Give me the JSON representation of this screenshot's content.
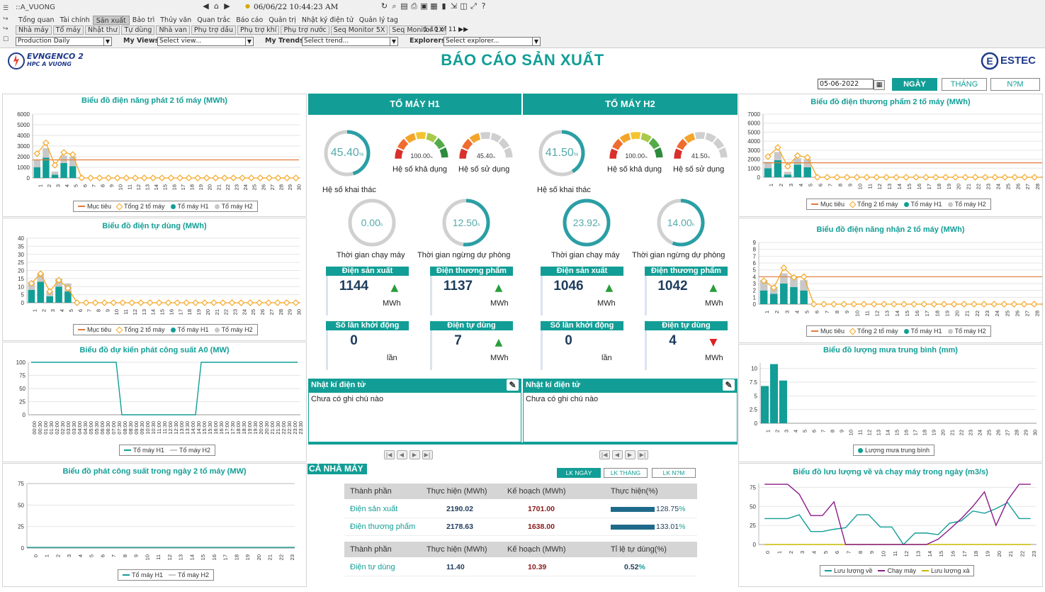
{
  "toolbar": {
    "title": "::A_VUONG",
    "datetime": "06/06/22 10:44:23 AM",
    "tabs_row1": [
      "Tổng quan",
      "Tài chính",
      "Sản xuất",
      "Bảo trì",
      "Thủy văn",
      "Quan trắc",
      "Báo cáo",
      "Quản trị",
      "Nhật ký điện tử",
      "Quản lý tag"
    ],
    "tabs_row1_active": 2,
    "tabs_row2": [
      "Nhà máy",
      "Tổ máy",
      "Nhật thư",
      "Tự dùng",
      "Nhà van",
      "Phụ trợ dầu",
      "Phụ trợ khí",
      "Phụ trợ nước",
      "Seq Monitor 5X",
      "Seq Monitor 1X"
    ],
    "paging": "1-10 of 11",
    "production_select": "Production Daily",
    "my_views_label": "My Views",
    "my_views_value": "Select view...",
    "my_trends_label": "My Trends",
    "my_trends_value": "Select trend...",
    "explorers_label": "Explorers",
    "explorers_value": "Select explorer..."
  },
  "header": {
    "title": "BÁO CÁO SẢN XUẤT",
    "logo_left_line1": "EVNGENCO 2",
    "logo_left_line2": "HPC A VUONG",
    "logo_right": "ESTEC",
    "date_value": "05-06-2022",
    "btn_day": "NGÀY",
    "btn_month": "THÁNG",
    "btn_year": "N?M"
  },
  "colors": {
    "accent": "#129e96",
    "target": "#e07b39",
    "total": "#f5a623",
    "h1": "#129e96",
    "h2": "#c8c8c8",
    "purple": "#8b1a8b",
    "olive": "#c7b800"
  },
  "charts": {
    "c1": {
      "title": "Biểu đồ điện năng phát 2 tổ máy (MWh)",
      "ymax": 6000,
      "yticks": [
        0,
        1000,
        2000,
        3000,
        4000,
        5000,
        6000
      ],
      "target": 1700,
      "h1": [
        1000,
        1900,
        300,
        1400,
        1100
      ],
      "h2": [
        700,
        900,
        300,
        700,
        900
      ],
      "total": [
        2300,
        3300,
        1200,
        2400,
        2200
      ]
    },
    "c2": {
      "title": "Biểu đồ điện tự dùng (MWh)",
      "ymax": 40,
      "yticks": [
        0,
        5,
        10,
        15,
        20,
        25,
        30,
        35,
        40
      ],
      "target": null,
      "h1": [
        8,
        13,
        4,
        10,
        7
      ],
      "h2": [
        5,
        5,
        3,
        5,
        5
      ],
      "total": [
        12,
        18,
        7,
        14,
        9
      ]
    },
    "c3": {
      "title": "Biểu đồ dự kiến phát công suất A0 (MW)",
      "ymax": 100,
      "yticks": [
        0,
        25,
        50,
        75,
        100
      ],
      "xlabels": [
        "00:00",
        "00:30",
        "01:00",
        "01:30",
        "02:00",
        "02:30",
        "03:00",
        "03:30",
        "04:00",
        "04:30",
        "05:00",
        "05:30",
        "06:00",
        "06:30",
        "07:00",
        "07:30",
        "08:00",
        "08:30",
        "09:00",
        "09:30",
        "10:00",
        "10:30",
        "11:00",
        "11:30",
        "12:00",
        "12:30",
        "13:00",
        "13:30",
        "14:00",
        "14:30",
        "15:00",
        "15:30",
        "16:00",
        "16:30",
        "17:00",
        "17:30",
        "18:00",
        "18:30",
        "19:00",
        "19:30",
        "20:00",
        "20:30",
        "21:00",
        "21:30",
        "22:00",
        "22:30",
        "23:00",
        "23:30"
      ],
      "values": [
        100,
        100,
        100,
        100,
        100,
        100,
        100,
        100,
        100,
        100,
        100,
        100,
        100,
        100,
        100,
        100,
        0,
        0,
        0,
        0,
        0,
        0,
        0,
        0,
        0,
        0,
        0,
        0,
        0,
        0,
        100,
        100,
        100,
        100,
        100,
        100,
        100,
        100,
        100,
        100,
        100,
        100,
        100,
        100,
        100,
        100,
        100,
        100
      ]
    },
    "c4": {
      "title": "Biểu đồ phát công suất trong ngày 2 tổ máy (MW)",
      "ymax": 75,
      "yticks": [
        0,
        25,
        50,
        75
      ]
    },
    "c5": {
      "title": "Biểu đồ điện thương phẩm 2 tổ máy (MWh)",
      "ymax": 7000,
      "yticks": [
        0,
        1000,
        2000,
        3000,
        4000,
        5000,
        6000,
        7000
      ],
      "target": 1600,
      "h1": [
        1000,
        1900,
        300,
        1400,
        1100
      ],
      "h2": [
        700,
        900,
        300,
        700,
        900
      ],
      "total": [
        2300,
        3300,
        1200,
        2400,
        2200
      ]
    },
    "c6": {
      "title": "Biểu đồ điện năng nhận 2 tổ máy (MWh)",
      "ymax": 9,
      "yticks": [
        0,
        1,
        2,
        3,
        4,
        5,
        6,
        7,
        8,
        9
      ],
      "target": 4,
      "h1": [
        2,
        1.5,
        3,
        2.5,
        2
      ],
      "h2": [
        1.5,
        1,
        1.5,
        1.5,
        1.5
      ],
      "total": [
        3.4,
        2.4,
        5.3,
        3.9,
        4
      ]
    },
    "c7": {
      "title": "Biểu đồ lượng mưa trung bình (mm)",
      "ymax": 11,
      "yticks": [
        0,
        2.5,
        5,
        7.5,
        10
      ],
      "values": [
        6.8,
        10.8,
        7.8,
        0,
        0,
        0,
        0,
        0,
        0,
        0,
        0,
        0,
        0,
        0,
        0,
        0,
        0,
        0,
        0,
        0,
        0,
        0,
        0,
        0,
        0,
        0,
        0,
        0,
        0,
        0
      ]
    },
    "c8": {
      "title": "Biểu đồ lưu lượng về và chạy máy trong ngày (m3/s)",
      "ymax": 80,
      "yticks": [
        0,
        25,
        50,
        75
      ],
      "luu_luong_ve": [
        34,
        34,
        34,
        39,
        17,
        17,
        20,
        22,
        39,
        39,
        23,
        23,
        0,
        15,
        15,
        13,
        28,
        31,
        44,
        41,
        47,
        55,
        34,
        34
      ],
      "chay_may": [
        79,
        79,
        79,
        66,
        38,
        38,
        56,
        0,
        0,
        0,
        0,
        0,
        0,
        0,
        0,
        7,
        20,
        34,
        50,
        69,
        25,
        58,
        79,
        79
      ],
      "luu_luong_xa": [
        0,
        0,
        0,
        0,
        0,
        0,
        0,
        0,
        0,
        0,
        0,
        0,
        0,
        0,
        0,
        0,
        0,
        0,
        0,
        0,
        0,
        0,
        0,
        0
      ]
    }
  },
  "legend_labels": {
    "target": "Mục tiêu",
    "total": "Tổng 2 tổ máy",
    "h1": "Tổ máy H1",
    "h2": "Tổ máy H2",
    "rain": "Lượng mưa trung bình",
    "luu_ve": "Lưu lượng về",
    "chay": "Chạy máy",
    "xa": "Lưu lượng xả"
  },
  "units": [
    {
      "name": "TỔ MÁY H1",
      "khai_thac": "45.40",
      "kha_dung": "100.00",
      "su_dung": "45.40",
      "chay": "0.00",
      "ngung": "12.50",
      "san_xuat": "1144",
      "san_xuat_trend": "up",
      "thuong_pham": "1137",
      "thuong_pham_trend": "up",
      "khoi_dong": "0",
      "tu_dung": "7",
      "tu_dung_trend": "up"
    },
    {
      "name": "TỔ MÁY H2",
      "khai_thac": "41.50",
      "kha_dung": "100.00",
      "su_dung": "41.50",
      "chay": "23.92",
      "ngung": "14.00",
      "san_xuat": "1046",
      "san_xuat_trend": "up",
      "thuong_pham": "1042",
      "thuong_pham_trend": "up",
      "khoi_dong": "0",
      "tu_dung": "4",
      "tu_dung_trend": "down"
    }
  ],
  "unit_levels": [
    {
      "khai_thac": 45.4,
      "kha_dung": 100,
      "su_dung": 45.4,
      "chay": 0,
      "ngung": 52
    },
    {
      "khai_thac": 41.5,
      "kha_dung": 100,
      "su_dung": 41.5,
      "chay": 100,
      "ngung": 56
    }
  ],
  "unit_labels": {
    "khai_thac": "Hệ số khai thác",
    "kha_dung": "Hệ số khả dụng",
    "su_dung": "Hệ số sử dụng",
    "chay": "Thời gian chạy máy",
    "ngung": "Thời gian ngừng dự phòng",
    "san_xuat": "Điện sản xuất",
    "thuong_pham": "Điện thương phẩm",
    "khoi_dong": "Số lần khởi động",
    "tu_dung": "Điện tự dùng",
    "mwh": "MWh",
    "lan": "lần",
    "pct": "%",
    "hour": "h"
  },
  "notes": {
    "title": "Nhật kí điện tử",
    "empty": "Chưa có ghi chú nào"
  },
  "plant": {
    "title": "CẢ NHÀ MÁY",
    "btn_day": "LK NGÀY",
    "btn_month": "LK THÁNG",
    "btn_year": "LK N?M",
    "head1": [
      "Thành phần",
      "Thực hiện (MWh)",
      "Kế hoạch (MWh)",
      "Thực hiện(%)"
    ],
    "rows1": [
      {
        "name": "Điện sản xuất",
        "actual": "2190.02",
        "plan": "1701.00",
        "pct": "128.75",
        "pct_value": 100
      },
      {
        "name": "Điện thương phẩm",
        "actual": "2178.63",
        "plan": "1638.00",
        "pct": "133.01",
        "pct_value": 100
      }
    ],
    "head2": [
      "Thành phần",
      "Thực hiện (MWh)",
      "Kế hoạch (MWh)",
      "Tỉ lệ tự dùng(%)"
    ],
    "rows2": [
      {
        "name": "Điện tự dùng",
        "actual": "11.40",
        "plan": "10.39",
        "pct": "0.52"
      }
    ],
    "pct_sign": "%"
  }
}
